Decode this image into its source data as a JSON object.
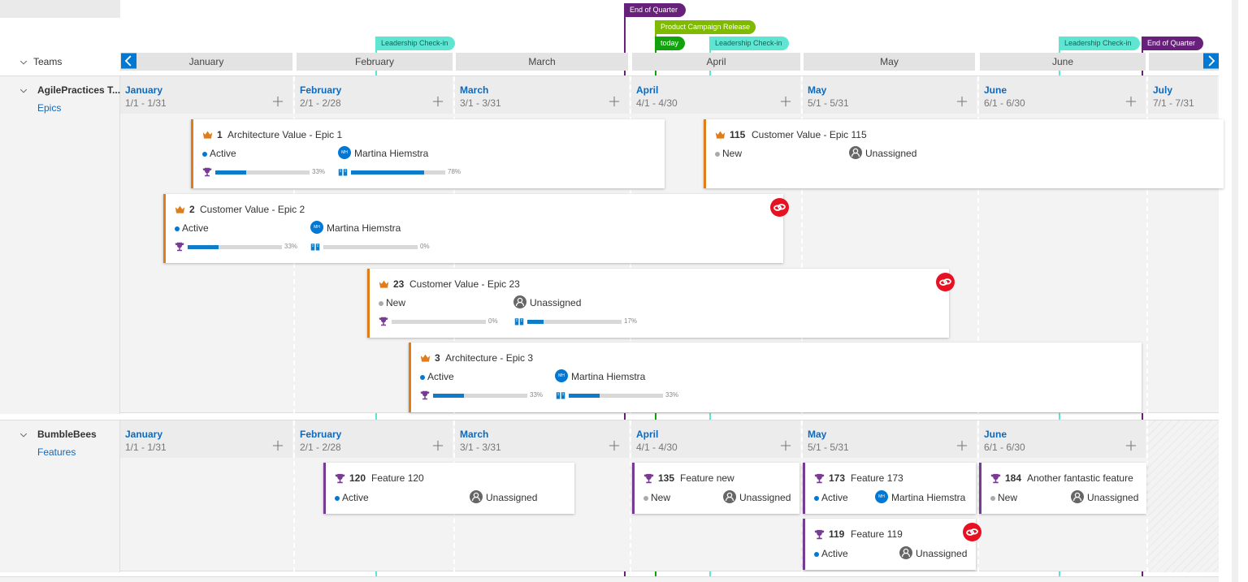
{
  "markers": [
    {
      "label": "End of Quarter"
    },
    {
      "label": "Product Campaign Release"
    },
    {
      "label": "today"
    },
    {
      "label": "Leadership Check-in"
    },
    {
      "label": "Leadership Check-in"
    },
    {
      "label": "Leadership Check-in"
    },
    {
      "label": "End of Quarter"
    }
  ],
  "header": {
    "teams_label": "Teams",
    "months": [
      "January",
      "February",
      "March",
      "April",
      "May",
      "June"
    ]
  },
  "teams": [
    {
      "name": "AgilePractices T...",
      "backlog": "Epics",
      "intervals": [
        {
          "month": "January",
          "range": "1/1 - 1/31"
        },
        {
          "month": "February",
          "range": "2/1 - 2/28"
        },
        {
          "month": "March",
          "range": "3/1 - 3/31"
        },
        {
          "month": "April",
          "range": "4/1 - 4/30"
        },
        {
          "month": "May",
          "range": "5/1 - 5/31"
        },
        {
          "month": "June",
          "range": "6/1 - 6/30"
        },
        {
          "month": "July",
          "range": "7/1 - 7/31"
        }
      ],
      "cards": [
        {
          "id": "1",
          "title": "Architecture Value - Epic 1",
          "state": "Active",
          "assignee": "Martina Hiemstra",
          "initials": "MH",
          "progress": [
            "33%",
            "78%"
          ]
        },
        {
          "id": "115",
          "title": "Customer Value - Epic 115",
          "state": "New",
          "assignee": "Unassigned"
        },
        {
          "id": "2",
          "title": "Customer Value - Epic 2",
          "state": "Active",
          "assignee": "Martina Hiemstra",
          "initials": "MH",
          "progress": [
            "33%",
            "0%"
          ]
        },
        {
          "id": "23",
          "title": "Customer Value - Epic 23",
          "state": "New",
          "assignee": "Unassigned",
          "progress": [
            "0%",
            "17%"
          ]
        },
        {
          "id": "3",
          "title": "Architecture - Epic 3",
          "state": "Active",
          "assignee": "Martina Hiemstra",
          "initials": "MH",
          "progress": [
            "33%",
            "33%"
          ]
        }
      ]
    },
    {
      "name": "BumbleBees",
      "backlog": "Features",
      "intervals": [
        {
          "month": "January",
          "range": "1/1 - 1/31"
        },
        {
          "month": "February",
          "range": "2/1 - 2/28"
        },
        {
          "month": "March",
          "range": "3/1 - 3/31"
        },
        {
          "month": "April",
          "range": "4/1 - 4/30"
        },
        {
          "month": "May",
          "range": "5/1 - 5/31"
        },
        {
          "month": "June",
          "range": "6/1 - 6/30"
        }
      ],
      "cards": [
        {
          "id": "120",
          "title": "Feature 120",
          "state": "Active",
          "assignee": "Unassigned"
        },
        {
          "id": "135",
          "title": "Feature new",
          "state": "New",
          "assignee": "Unassigned"
        },
        {
          "id": "173",
          "title": "Feature 173",
          "state": "Active",
          "assignee": "Martina Hiemstra",
          "initials": "MH"
        },
        {
          "id": "184",
          "title": "Another fantastic feature",
          "state": "New",
          "assignee": "Unassigned"
        },
        {
          "id": "119",
          "title": "Feature 119",
          "state": "Active",
          "assignee": "Unassigned"
        }
      ]
    }
  ]
}
